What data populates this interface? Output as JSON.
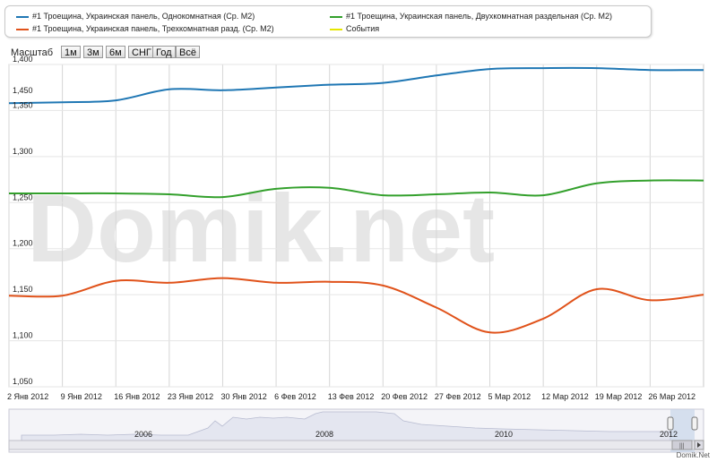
{
  "legend": {
    "items": [
      {
        "label": "#1 Троещина, Украинская панель, Однокомнатная (Ср. М2)",
        "color": "#1f77b4"
      },
      {
        "label": "#1 Троещина, Украинская панель, Двухкомнатная раздельная (Ср. М2)",
        "color": "#33a02c"
      },
      {
        "label": "#1 Троещина, Украинская панель, Трехкомнатная разд. (Ср. М2)",
        "color": "#e0521a"
      },
      {
        "label": "События",
        "color": "#e6e600"
      }
    ]
  },
  "zoom": {
    "label": "Масштаб",
    "buttons": [
      "1м",
      "3м",
      "6м",
      "СНГ",
      "Год",
      "Всё"
    ]
  },
  "watermark": "Domik.net",
  "credit": "Domik.Net",
  "navigator": {
    "year_labels": [
      "2006",
      "2008",
      "2010",
      "2012"
    ]
  },
  "chart_data": {
    "type": "line",
    "x_tick_labels": [
      "2 Янв 2012",
      "9 Янв 2012",
      "16 Янв 2012",
      "23 Янв 2012",
      "30 Янв 2012",
      "6 Фев 2012",
      "13 Фев 2012",
      "20 Фев 2012",
      "27 Фев 2012",
      "5 Мар 2012",
      "12 Мар 2012",
      "19 Мар 2012",
      "26 Мар 2012"
    ],
    "y_tick_labels": [
      "1,050",
      "1,100",
      "1,150",
      "1,200",
      "1,250",
      "1,300",
      "1,350",
      "1,400",
      "1,450"
    ],
    "ylim": [
      1050,
      1400
    ],
    "grid": true,
    "legend_position": "top",
    "series": [
      {
        "name": "#1 Троещина, Украинская панель, Однокомнатная (Ср. М2)",
        "color": "#1f77b4",
        "points": [
          [
            0,
            1358
          ],
          [
            7,
            1359
          ],
          [
            14,
            1361
          ],
          [
            21,
            1373
          ],
          [
            28,
            1372
          ],
          [
            35,
            1375
          ],
          [
            42,
            1378
          ],
          [
            49,
            1380
          ],
          [
            56,
            1388
          ],
          [
            63,
            1395
          ],
          [
            70,
            1396
          ],
          [
            77,
            1396
          ],
          [
            84,
            1394
          ],
          [
            91,
            1394
          ]
        ]
      },
      {
        "name": "#1 Троещина, Украинская панель, Двухкомнатная раздельная (Ср. М2)",
        "color": "#33a02c",
        "points": [
          [
            0,
            1260
          ],
          [
            7,
            1260
          ],
          [
            14,
            1260
          ],
          [
            21,
            1259
          ],
          [
            28,
            1256
          ],
          [
            35,
            1265
          ],
          [
            42,
            1266
          ],
          [
            49,
            1258
          ],
          [
            56,
            1259
          ],
          [
            63,
            1261
          ],
          [
            70,
            1258
          ],
          [
            77,
            1271
          ],
          [
            84,
            1274
          ],
          [
            91,
            1274
          ]
        ]
      },
      {
        "name": "#1 Троещина, Украинская панель, Трехкомнатная разд. (Ср. М2)",
        "color": "#e0521a",
        "points": [
          [
            0,
            1149
          ],
          [
            7,
            1149
          ],
          [
            14,
            1165
          ],
          [
            21,
            1163
          ],
          [
            28,
            1168
          ],
          [
            35,
            1163
          ],
          [
            42,
            1164
          ],
          [
            49,
            1160
          ],
          [
            56,
            1136
          ],
          [
            63,
            1109
          ],
          [
            70,
            1124
          ],
          [
            77,
            1156
          ],
          [
            84,
            1144
          ],
          [
            91,
            1150
          ]
        ]
      }
    ]
  }
}
